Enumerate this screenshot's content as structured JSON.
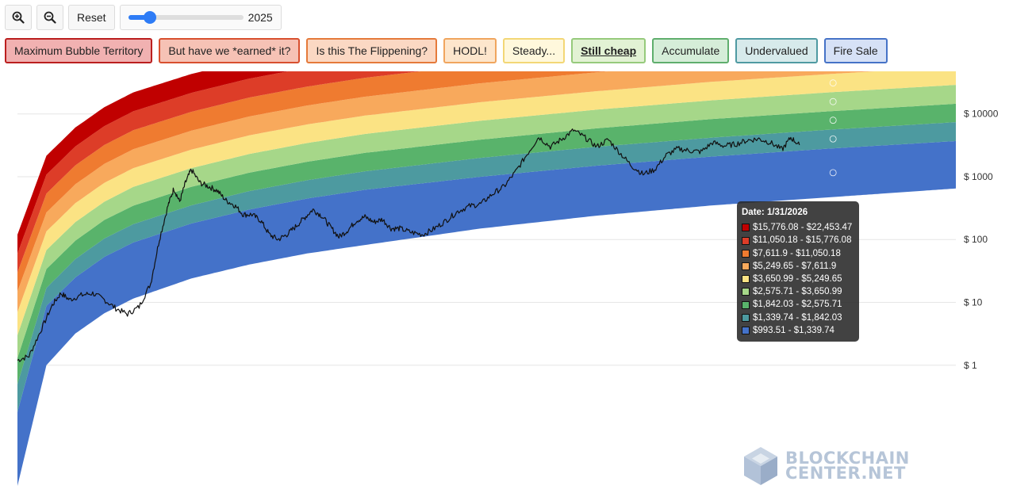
{
  "toolbar": {
    "zoom_in_icon": "zoom-in-icon",
    "zoom_out_icon": "zoom-out-icon",
    "reset_label": "Reset",
    "slider": {
      "min_year": 2012,
      "max_year": 2028,
      "value_year": 2015,
      "label": "2025"
    }
  },
  "legend": [
    {
      "label": "Maximum Bubble Territory",
      "color": "#c00000",
      "bg": "#f1b1b1",
      "border": "#bb1f1f",
      "active": false
    },
    {
      "label": "But have we *earned* it?",
      "color": "#dd3d28",
      "bg": "#f6c2b5",
      "border": "#d8502f",
      "active": false
    },
    {
      "label": "Is this The Flippening?",
      "color": "#ef7b30",
      "bg": "#fbd8c3",
      "border": "#e57a3b",
      "active": false
    },
    {
      "label": "HODL!",
      "color": "#f8a95c",
      "bg": "#fde6cc",
      "border": "#f0a55e",
      "active": false
    },
    {
      "label": "Steady...",
      "color": "#fbe384",
      "bg": "#fff8dc",
      "border": "#f3d776",
      "active": false
    },
    {
      "label": "Still cheap",
      "color": "#a6d789",
      "bg": "#e2f2d4",
      "border": "#96ca7c",
      "active": true
    },
    {
      "label": "Accumulate",
      "color": "#59b36b",
      "bg": "#d5edd8",
      "border": "#5fae6d",
      "active": false
    },
    {
      "label": "Undervalued",
      "color": "#4d9aa0",
      "bg": "#d7eaeb",
      "border": "#4f9aa2",
      "active": false
    },
    {
      "label": "Fire Sale",
      "color": "#4472c9",
      "bg": "#d6e1f6",
      "border": "#4673c7",
      "active": false
    }
  ],
  "tooltip": {
    "date": "Date: 1/31/2026",
    "rows": [
      "$15,776.08 - $22,453.47",
      "$11,050.18 - $15,776.08",
      "$7,611.9 - $11,050.18",
      "$5,249.65 - $7,611.9",
      "$3,650.99 - $5,249.65",
      "$2,575.71 - $3,650.99",
      "$1,842.03 - $2,575.71",
      "$1,339.74 - $1,842.03",
      "$993.51 - $1,339.74"
    ]
  },
  "watermark": {
    "line1": "BLOCKCHAIN",
    "line2": "CENTER.NET"
  },
  "chart_data": {
    "type": "line",
    "y_scale": "log",
    "grid": true,
    "xlim": [
      2012.0,
      2028.2
    ],
    "ylim": [
      0.011,
      40000
    ],
    "y_ticks": [
      {
        "value": 1,
        "label": "$ 1"
      },
      {
        "value": 10,
        "label": "$ 10"
      },
      {
        "value": 100,
        "label": "$ 100"
      },
      {
        "value": 1000,
        "label": "$ 1000"
      },
      {
        "value": 10000,
        "label": "$ 10000"
      }
    ],
    "bands": {
      "x": [
        2012.0,
        2012.5,
        2013.0,
        2013.5,
        2014.0,
        2015.0,
        2016.0,
        2017.0,
        2018.0,
        2020.0,
        2022.0,
        2024.0,
        2026.0,
        2028.2
      ],
      "edges": [
        [
          0.012,
          1.0,
          3.2,
          6.7,
          11.5,
          24,
          40,
          60,
          82,
          150,
          240,
          350,
          470,
          650
        ],
        [
          0.18,
          8.8,
          25,
          53,
          90,
          180,
          300,
          450,
          620,
          1000,
          1500,
          2100,
          2800,
          3700
        ],
        [
          0.5,
          17,
          49,
          104,
          176,
          350,
          590,
          880,
          1220,
          2000,
          3000,
          4200,
          5600,
          7400
        ],
        [
          1.3,
          34,
          96,
          205,
          346,
          690,
          1160,
          1730,
          2400,
          3900,
          5900,
          8300,
          11000,
          14500
        ],
        [
          3.0,
          68,
          190,
          400,
          690,
          1370,
          2300,
          3440,
          4800,
          7800,
          11700,
          16500,
          22000,
          29000
        ],
        [
          7.0,
          135,
          380,
          800,
          1370,
          2700,
          4560,
          6800,
          9400,
          15400,
          23000,
          32500,
          43000,
          57000
        ],
        [
          15,
          270,
          760,
          1600,
          2740,
          5400,
          9100,
          13600,
          18800,
          30800,
          46000,
          65000,
          86000,
          114000
        ],
        [
          30,
          540,
          1520,
          3200,
          5500,
          10800,
          18200,
          27200,
          37600,
          61600,
          92000,
          130000,
          172000,
          228000
        ],
        [
          60,
          1080,
          3040,
          6400,
          11000,
          21600,
          36400,
          54400,
          75200,
          123000,
          184000,
          260000,
          344000,
          456000
        ],
        [
          120,
          2160,
          6080,
          12800,
          22000,
          43200,
          72800,
          108800,
          150400,
          246000,
          368000,
          520000,
          688000,
          912000
        ]
      ]
    },
    "price_series": {
      "x": [
        2012.0,
        2012.2,
        2012.4,
        2012.6,
        2012.75,
        2012.9,
        2013.1,
        2013.3,
        2013.5,
        2013.7,
        2013.9,
        2014.1,
        2014.3,
        2014.45,
        2014.6,
        2014.7,
        2014.8,
        2014.9,
        2015.0,
        2015.15,
        2015.3,
        2015.45,
        2015.6,
        2015.75,
        2015.9,
        2016.05,
        2016.2,
        2016.35,
        2016.5,
        2016.65,
        2016.8,
        2016.95,
        2017.1,
        2017.25,
        2017.4,
        2017.55,
        2017.7,
        2017.85,
        2018.0,
        2018.15,
        2018.3,
        2018.45,
        2018.6,
        2018.8,
        2019.0,
        2019.2,
        2019.4,
        2019.6,
        2019.8,
        2020.0,
        2020.2,
        2020.4,
        2020.6,
        2020.8,
        2021.0,
        2021.2,
        2021.4,
        2021.6,
        2021.8,
        2022.0,
        2022.2,
        2022.4,
        2022.6,
        2022.8,
        2023.0,
        2023.2,
        2023.4,
        2023.6,
        2023.8,
        2024.0,
        2024.2,
        2024.4,
        2024.6,
        2024.8,
        2025.0,
        2025.2,
        2025.35,
        2025.5
      ],
      "y": [
        1.2,
        1.4,
        3.5,
        9.0,
        14,
        11,
        13,
        14,
        11,
        8.0,
        6.5,
        8.5,
        20,
        100,
        350,
        650,
        400,
        800,
        1300,
        800,
        700,
        600,
        420,
        350,
        250,
        250,
        200,
        120,
        100,
        120,
        160,
        220,
        300,
        240,
        160,
        110,
        140,
        200,
        230,
        190,
        210,
        150,
        150,
        130,
        120,
        150,
        200,
        280,
        340,
        370,
        530,
        700,
        1200,
        2300,
        4300,
        3000,
        4000,
        5500,
        4200,
        3000,
        3900,
        2400,
        1500,
        1100,
        1300,
        2200,
        2800,
        2600,
        2500,
        3500,
        3100,
        3300,
        3800,
        4000,
        3500,
        2700,
        4200,
        3200
      ]
    }
  }
}
